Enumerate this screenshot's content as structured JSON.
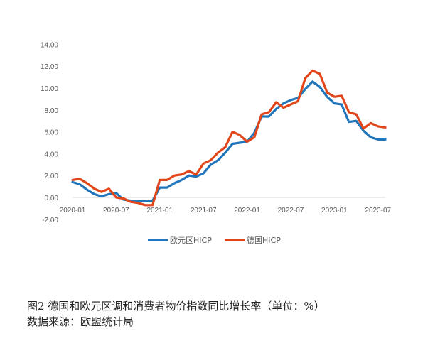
{
  "caption": {
    "title": "图2   德国和欧元区调和消费者物价指数同比增长率（单位：%）",
    "source": "数据来源：欧盟统计局"
  },
  "chart_data": {
    "type": "line",
    "xlabel": "",
    "ylabel": "",
    "ylim": [
      -2,
      14
    ],
    "y_ticks": [
      -2,
      0,
      2,
      4,
      6,
      8,
      10,
      12,
      14
    ],
    "y_tick_labels": [
      "-2.00",
      "0.00",
      "2.00",
      "4.00",
      "6.00",
      "8.00",
      "10.00",
      "12.00",
      "14.00"
    ],
    "x_tick_labels": [
      "2020-01",
      "2020-07",
      "2021-01",
      "2021-07",
      "2022-01",
      "2022-07",
      "2023-01",
      "2023-07"
    ],
    "x": [
      "2020-01",
      "2020-02",
      "2020-03",
      "2020-04",
      "2020-05",
      "2020-06",
      "2020-07",
      "2020-08",
      "2020-09",
      "2020-10",
      "2020-11",
      "2020-12",
      "2021-01",
      "2021-02",
      "2021-03",
      "2021-04",
      "2021-05",
      "2021-06",
      "2021-07",
      "2021-08",
      "2021-09",
      "2021-10",
      "2021-11",
      "2021-12",
      "2022-01",
      "2022-02",
      "2022-03",
      "2022-04",
      "2022-05",
      "2022-06",
      "2022-07",
      "2022-08",
      "2022-09",
      "2022-10",
      "2022-11",
      "2022-12",
      "2023-01",
      "2023-02",
      "2023-03",
      "2023-04",
      "2023-05",
      "2023-06",
      "2023-07",
      "2023-08"
    ],
    "legend_position": "bottom",
    "grid": false,
    "series": [
      {
        "name": "欧元区HICP",
        "color": "#2175BA",
        "values": [
          1.4,
          1.2,
          0.7,
          0.3,
          0.1,
          0.3,
          0.4,
          -0.2,
          -0.3,
          -0.3,
          -0.3,
          -0.3,
          0.9,
          0.9,
          1.3,
          1.6,
          2.0,
          1.9,
          2.2,
          3.0,
          3.4,
          4.1,
          4.9,
          5.0,
          5.1,
          5.9,
          7.4,
          7.4,
          8.1,
          8.6,
          8.9,
          9.1,
          9.9,
          10.6,
          10.1,
          9.2,
          8.6,
          8.5,
          6.9,
          7.0,
          6.1,
          5.5,
          5.3,
          5.3
        ]
      },
      {
        "name": "德国HICP",
        "color": "#E0461A",
        "values": [
          1.6,
          1.7,
          1.3,
          0.8,
          0.5,
          0.8,
          0.0,
          -0.1,
          -0.4,
          -0.5,
          -0.7,
          -0.7,
          1.6,
          1.6,
          2.0,
          2.1,
          2.4,
          2.1,
          3.1,
          3.4,
          4.1,
          4.6,
          6.0,
          5.7,
          5.1,
          5.5,
          7.6,
          7.8,
          8.7,
          8.2,
          8.5,
          8.8,
          10.9,
          11.6,
          11.3,
          9.6,
          9.2,
          9.3,
          7.8,
          7.6,
          6.3,
          6.8,
          6.5,
          6.4
        ]
      }
    ]
  }
}
